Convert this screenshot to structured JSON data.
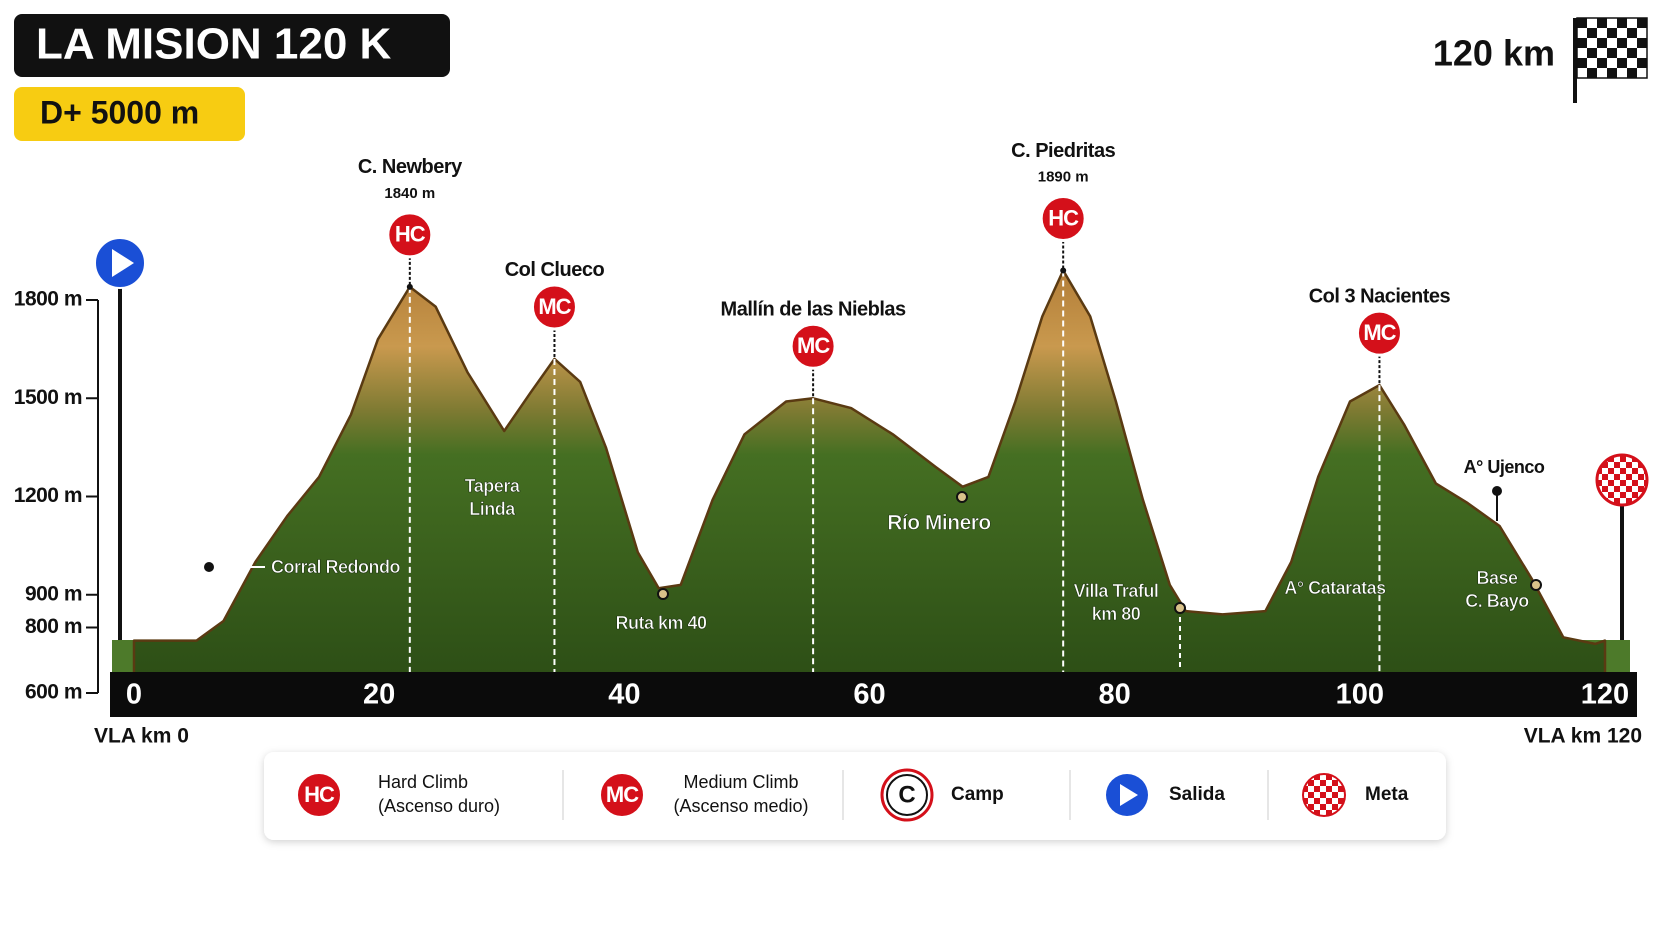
{
  "chart_data": {
    "type": "area",
    "title": "LA MISION 120 K",
    "subtitle": "D+ 5000 m",
    "distance_label": "120 km",
    "start_label": "VLA km 0",
    "end_label": "VLA km 120",
    "x": [
      0,
      5.1,
      7.3,
      9.9,
      12.5,
      15.1,
      17.7,
      19.9,
      22.5,
      24.6,
      27.2,
      30.2,
      32.4,
      34.3,
      36.4,
      38.5,
      41.1,
      42.8,
      44.6,
      47.2,
      49.8,
      53.2,
      55.4,
      58.5,
      61.9,
      65.4,
      67.6,
      69.7,
      71.9,
      74.1,
      75.8,
      78,
      80.1,
      82.3,
      84.5,
      85.8,
      88.8,
      92.3,
      94.4,
      96.6,
      99.2,
      101.6,
      103.6,
      106.2,
      108.8,
      111.4,
      114,
      116.6,
      119.2,
      120
    ],
    "values": [
      760,
      760,
      820,
      1000,
      1140,
      1260,
      1450,
      1680,
      1840,
      1780,
      1580,
      1400,
      1520,
      1620,
      1550,
      1350,
      1030,
      920,
      930,
      1190,
      1390,
      1490,
      1500,
      1470,
      1390,
      1290,
      1230,
      1260,
      1490,
      1750,
      1890,
      1750,
      1490,
      1190,
      930,
      850,
      840,
      850,
      1000,
      1260,
      1490,
      1540,
      1420,
      1240,
      1180,
      1110,
      950,
      770,
      750,
      760
    ],
    "xlim": [
      0,
      120
    ],
    "xticks": [
      0,
      20,
      40,
      60,
      80,
      100,
      120
    ],
    "ylim": [
      600,
      1800
    ],
    "yticks": [
      {
        "value": 600,
        "label": "600 m"
      },
      {
        "value": 800,
        "label": "800 m"
      },
      {
        "value": 900,
        "label": "900 m"
      },
      {
        "value": 1200,
        "label": "1200 m"
      },
      {
        "value": 1500,
        "label": "1500 m"
      },
      {
        "value": 1800,
        "label": "1800 m"
      }
    ],
    "climbs": [
      {
        "name": "C. Newbery",
        "elevation": 1840,
        "elevation_label": "1840 m",
        "badge": "HC",
        "km": 22.5
      },
      {
        "name": "Col Clueco",
        "badge": "MC",
        "km": 34.3
      },
      {
        "name": "Mallín de las Nieblas",
        "badge": "MC",
        "km": 55.4
      },
      {
        "name": "C. Piedritas",
        "elevation": 1890,
        "elevation_label": "1890 m",
        "badge": "HC",
        "km": 75.8
      },
      {
        "name": "Col 3 Nacientes",
        "badge": "MC",
        "km": 101.6
      }
    ],
    "annotations": [
      {
        "lines": [
          "Corral Redondo"
        ]
      },
      {
        "lines": [
          "Tapera",
          "Linda"
        ]
      },
      {
        "lines": [
          "Ruta km 40"
        ]
      },
      {
        "lines": [
          "Río Minero"
        ]
      },
      {
        "lines": [
          "Villa Traful",
          "km 80"
        ]
      },
      {
        "lines": [
          "A° Cataratas"
        ]
      },
      {
        "lines": [
          "A° Ujenco"
        ]
      },
      {
        "lines": [
          "Base",
          "C. Bayo"
        ]
      }
    ],
    "legend": [
      {
        "symbol": "HC",
        "lines": [
          "Hard Climb",
          "(Ascenso duro)"
        ]
      },
      {
        "symbol": "MC",
        "lines": [
          "Medium Climb",
          "(Ascenso medio)"
        ]
      },
      {
        "symbol": "C",
        "lines": [
          "Camp"
        ]
      },
      {
        "lines": [
          "Salida"
        ]
      },
      {
        "lines": [
          "Meta"
        ]
      }
    ]
  }
}
